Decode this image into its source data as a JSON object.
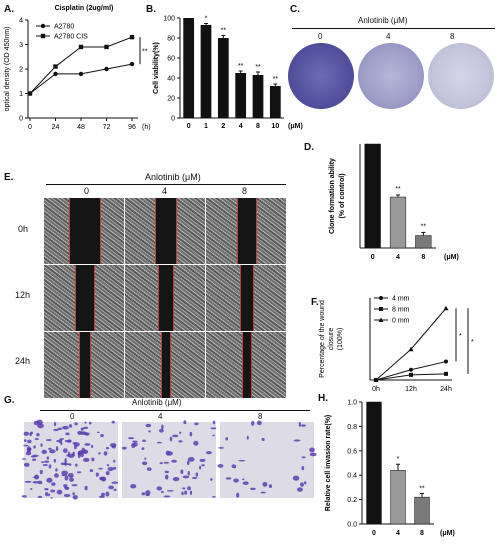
{
  "panels": {
    "A": {
      "label": "A."
    },
    "B": {
      "label": "B."
    },
    "C": {
      "label": "C."
    },
    "D": {
      "label": "D."
    },
    "E": {
      "label": "E."
    },
    "F": {
      "label": "F."
    },
    "G": {
      "label": "G."
    },
    "H": {
      "label": "H."
    }
  },
  "chart_data": [
    {
      "panel": "A",
      "type": "line",
      "title": "Cisplatin (2ug/ml)",
      "xlabel": "",
      "x_unit_label": "(h)",
      "ylabel": "optical density (OD 450nm)",
      "x": [
        0,
        24,
        48,
        72,
        96
      ],
      "xticks": [
        "0",
        "24",
        "48",
        "72",
        "96"
      ],
      "ylim": [
        0,
        4
      ],
      "yticks": [
        "0",
        "1",
        "2",
        "3",
        "4"
      ],
      "series": [
        {
          "name": "A2780",
          "marker": "circle",
          "values": [
            1.0,
            1.8,
            1.8,
            2.0,
            2.2
          ]
        },
        {
          "name": "A2780 CIS",
          "marker": "square",
          "values": [
            1.0,
            2.1,
            2.9,
            2.9,
            3.3
          ]
        }
      ],
      "annotation": "**",
      "legend": "top-left"
    },
    {
      "panel": "B",
      "type": "bar",
      "xlabel": "",
      "x_unit_label": "(μM)",
      "ylabel": "Cell viability(%)",
      "categories": [
        "0",
        "1",
        "2",
        "4",
        "8",
        "10"
      ],
      "values": [
        100,
        93,
        80,
        45,
        43,
        32
      ],
      "errors": [
        0,
        1.5,
        2.5,
        2,
        3,
        2
      ],
      "significance": [
        "",
        "*",
        "**",
        "**",
        "**",
        "**"
      ],
      "ylim": [
        0,
        100
      ],
      "yticks": [
        "0",
        "20",
        "40",
        "60",
        "80",
        "100"
      ]
    },
    {
      "panel": "D",
      "type": "bar",
      "ylabel": "Clone formation ability (% of control)",
      "x_unit_label": "(μM)",
      "categories": [
        "0",
        "4",
        "8"
      ],
      "values": [
        1.0,
        0.49,
        0.12
      ],
      "errors": [
        0,
        0.02,
        0.03
      ],
      "colors": [
        "#111111",
        "#9a9a9a",
        "#7a7a7a"
      ],
      "significance": [
        "",
        "**",
        "**"
      ]
    },
    {
      "panel": "F",
      "type": "line",
      "ylabel": "Percentage of the wound closure (100%)",
      "x": [
        "0h",
        "12h",
        "24h"
      ],
      "series": [
        {
          "name": "4 mm",
          "marker": "circle",
          "values": [
            0,
            10,
            18
          ]
        },
        {
          "name": "8 mm",
          "marker": "square",
          "values": [
            0,
            5,
            6
          ]
        },
        {
          "name": "0 mm",
          "marker": "triangle",
          "values": [
            0,
            30,
            70
          ]
        }
      ],
      "ylim": [
        0,
        80
      ],
      "significance": [
        "*",
        "*"
      ],
      "legend": "top-left"
    },
    {
      "panel": "H",
      "type": "bar",
      "ylabel": "Relative cell invasion rate(%)",
      "x_unit_label": "(μM)",
      "categories": [
        "0",
        "4",
        "8"
      ],
      "values": [
        1.0,
        0.44,
        0.22
      ],
      "errors": [
        0,
        0.05,
        0.03
      ],
      "colors": [
        "#111111",
        "#9a9a9a",
        "#7a7a7a"
      ],
      "significance": [
        "",
        "*",
        "**"
      ],
      "ylim": [
        0,
        1.0
      ],
      "yticks": [
        "0.0",
        "0.2",
        "0.4",
        "0.6",
        "0.8",
        "1.0"
      ]
    }
  ],
  "panel_c": {
    "title": "Anlotinib (μM)",
    "doses": [
      "0",
      "4",
      "8"
    ]
  },
  "panel_e": {
    "title": "Anlotinib (μM)",
    "doses": [
      "0",
      "4",
      "8"
    ],
    "rows": [
      "0h",
      "12h",
      "24h"
    ]
  },
  "panel_g": {
    "title": "Anlotinib (μM)",
    "doses": [
      "0",
      "4",
      "8"
    ]
  }
}
